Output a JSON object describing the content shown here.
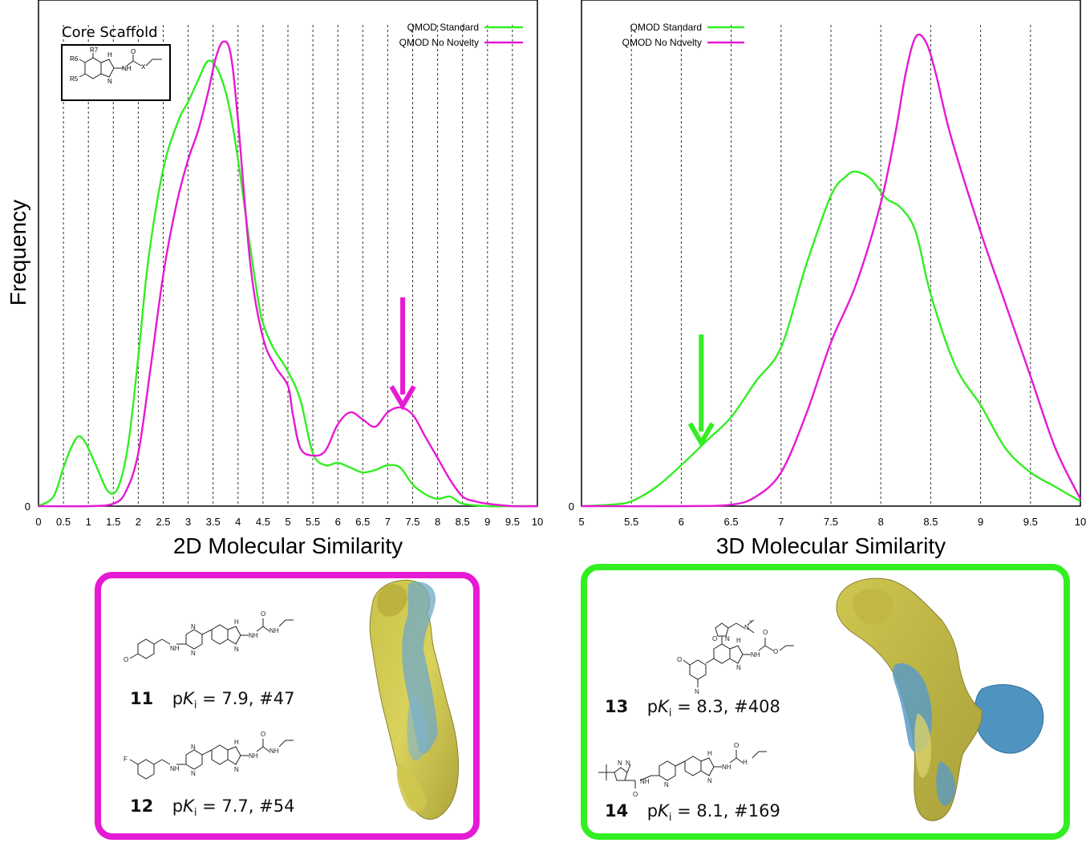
{
  "colors": {
    "standard": "#33ee22",
    "no_novelty": "#e619d4",
    "axis": "#000000",
    "grid": "#333333"
  },
  "charts": {
    "left": {
      "ylabel": "Frequency",
      "xlabel": "2D Molecular Similarity",
      "ytick": "0",
      "inset_label": "Core Scaffold",
      "scaffold_labels": {
        "r7": "R7",
        "r6": "R6",
        "r5": "R5",
        "h": "H",
        "n": "N",
        "nh": "NH",
        "o": "O",
        "x": "X"
      }
    },
    "right": {
      "xlabel": "3D Molecular Similarity",
      "ytick": "0"
    }
  },
  "chart_data": [
    {
      "type": "line",
      "title": "",
      "xlabel": "2D Molecular Similarity",
      "ylabel": "Frequency",
      "xlim": [
        0,
        10
      ],
      "ylim": [
        0,
        1
      ],
      "xticks": [
        "0",
        "0.5",
        "1",
        "1.5",
        "2",
        "2.5",
        "3",
        "3.5",
        "4",
        "4.5",
        "5",
        "5.5",
        "6",
        "6.5",
        "7",
        "7.5",
        "8",
        "8.5",
        "9",
        "9.5",
        "10"
      ],
      "grid": "vertical dashed",
      "legend": "top-right",
      "series": [
        {
          "name": "QMOD Standard",
          "x": [
            0,
            0.3,
            0.5,
            0.65,
            0.8,
            0.95,
            1.15,
            1.4,
            1.6,
            1.8,
            2.0,
            2.2,
            2.5,
            2.8,
            3.0,
            3.2,
            3.4,
            3.6,
            3.8,
            4.0,
            4.2,
            4.4,
            4.5,
            4.7,
            5.0,
            5.25,
            5.5,
            5.75,
            6.0,
            6.25,
            6.5,
            6.75,
            7.0,
            7.25,
            7.5,
            7.75,
            8.0,
            8.25,
            8.5,
            9.0,
            9.5,
            10
          ],
          "y": [
            0.0,
            0.02,
            0.08,
            0.12,
            0.145,
            0.13,
            0.085,
            0.03,
            0.04,
            0.13,
            0.31,
            0.51,
            0.7,
            0.8,
            0.84,
            0.885,
            0.925,
            0.905,
            0.84,
            0.72,
            0.57,
            0.43,
            0.38,
            0.33,
            0.28,
            0.22,
            0.11,
            0.085,
            0.09,
            0.08,
            0.07,
            0.075,
            0.085,
            0.08,
            0.045,
            0.025,
            0.015,
            0.02,
            0.005,
            0.0,
            0.0,
            0.0
          ]
        },
        {
          "name": "QMOD No Novelty",
          "x": [
            0,
            1.0,
            1.5,
            1.75,
            2.0,
            2.25,
            2.5,
            2.75,
            3.0,
            3.2,
            3.4,
            3.55,
            3.7,
            3.85,
            4.0,
            4.25,
            4.5,
            4.75,
            5.0,
            5.1,
            5.25,
            5.5,
            5.75,
            6.0,
            6.25,
            6.5,
            6.75,
            7.0,
            7.25,
            7.5,
            7.75,
            8.0,
            8.25,
            8.5,
            8.75,
            9.0,
            9.5,
            10
          ],
          "y": [
            0.0,
            0.0,
            0.005,
            0.03,
            0.11,
            0.29,
            0.48,
            0.62,
            0.72,
            0.78,
            0.86,
            0.93,
            0.965,
            0.94,
            0.8,
            0.5,
            0.35,
            0.29,
            0.25,
            0.19,
            0.12,
            0.105,
            0.115,
            0.17,
            0.195,
            0.18,
            0.165,
            0.195,
            0.205,
            0.19,
            0.145,
            0.1,
            0.055,
            0.02,
            0.01,
            0.005,
            0.0,
            0.0
          ]
        }
      ],
      "annotations": [
        {
          "type": "arrow",
          "x": 7.3,
          "color": "no_novelty"
        }
      ]
    },
    {
      "type": "line",
      "title": "",
      "xlabel": "3D Molecular Similarity",
      "ylabel": "",
      "xlim": [
        5,
        10
      ],
      "ylim": [
        0,
        1
      ],
      "xticks": [
        "5",
        "5.5",
        "6",
        "6.5",
        "7",
        "7.5",
        "8",
        "8.5",
        "9",
        "9.5",
        "10"
      ],
      "grid": "vertical dashed",
      "legend": "top-left",
      "series": [
        {
          "name": "QMOD Standard",
          "x": [
            5.0,
            5.3,
            5.5,
            5.75,
            6.0,
            6.25,
            6.5,
            6.75,
            7.0,
            7.25,
            7.5,
            7.65,
            7.75,
            7.9,
            8.05,
            8.2,
            8.35,
            8.5,
            8.75,
            9.0,
            9.25,
            9.5,
            9.75,
            10.0
          ],
          "y": [
            0.0,
            0.003,
            0.01,
            0.04,
            0.085,
            0.135,
            0.185,
            0.26,
            0.33,
            0.5,
            0.645,
            0.685,
            0.695,
            0.68,
            0.64,
            0.62,
            0.57,
            0.44,
            0.29,
            0.21,
            0.12,
            0.07,
            0.04,
            0.01
          ]
        },
        {
          "name": "QMOD No Novelty",
          "x": [
            5.0,
            6.0,
            6.5,
            6.75,
            7.0,
            7.25,
            7.5,
            7.75,
            8.0,
            8.15,
            8.25,
            8.35,
            8.45,
            8.55,
            8.7,
            9.0,
            9.25,
            9.5,
            9.75,
            10.0
          ],
          "y": [
            0.0,
            0.0,
            0.003,
            0.02,
            0.07,
            0.19,
            0.34,
            0.46,
            0.63,
            0.78,
            0.9,
            0.975,
            0.965,
            0.9,
            0.77,
            0.57,
            0.42,
            0.27,
            0.12,
            0.015
          ]
        }
      ],
      "annotations": [
        {
          "type": "arrow",
          "x": 6.2,
          "color": "standard"
        }
      ]
    }
  ],
  "compounds": [
    {
      "id": "11",
      "pk_prefix": "p",
      "pk_var": "K",
      "pk_sub": "i",
      "pk_text": " = 7.9, #47"
    },
    {
      "id": "12",
      "pk_prefix": "p",
      "pk_var": "K",
      "pk_sub": "i",
      "pk_text": " = 7.7, #54"
    },
    {
      "id": "13",
      "pk_prefix": "p",
      "pk_var": "K",
      "pk_sub": "i",
      "pk_text": " = 8.3, #408"
    },
    {
      "id": "14",
      "pk_prefix": "p",
      "pk_var": "K",
      "pk_sub": "i",
      "pk_text": " = 8.1, #169"
    }
  ],
  "atom_labels": {
    "m11": {
      "o_left": "O",
      "n1": "N",
      "n2": "N",
      "nh": "NH",
      "h": "H",
      "n3": "N",
      "o": "O",
      "nh2": "NH",
      "nh3": "NH"
    },
    "m12": {
      "f": "F",
      "n1": "N",
      "n2": "N",
      "nh": "NH",
      "h": "H",
      "n3": "N",
      "o": "O",
      "nh2": "NH",
      "nh3": "NH"
    },
    "m13": {
      "nplus": "N",
      "plus": "+",
      "o1": "O",
      "n1": "N",
      "o2": "O",
      "h": "H",
      "n2": "N",
      "nh": "NH",
      "o3": "O",
      "o4": "O",
      "n3": "N"
    },
    "m14": {
      "n1": "N",
      "n2": "N",
      "n3": "N",
      "h": "H",
      "n4": "N",
      "o": "O",
      "nh": "NH",
      "nh2": "NH",
      "o2": "O",
      "h2": "H"
    }
  }
}
